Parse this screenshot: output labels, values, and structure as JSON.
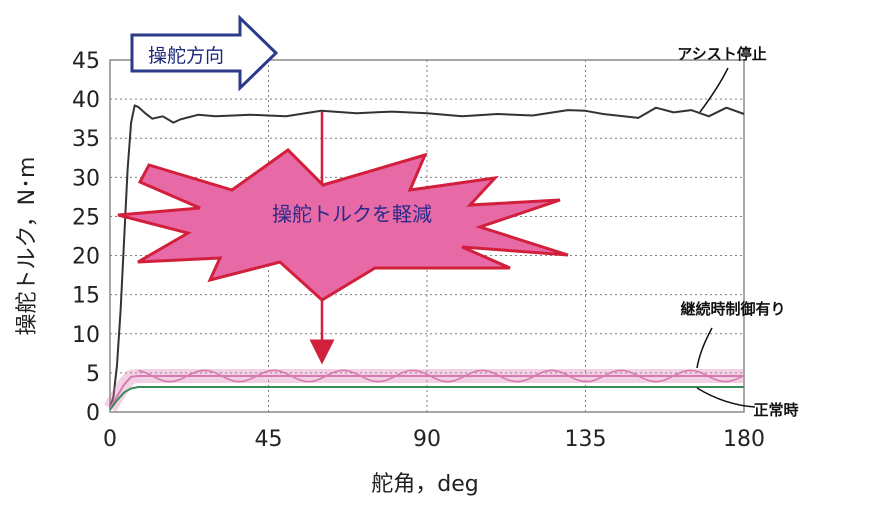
{
  "chart_data": {
    "type": "line",
    "xlabel": "舵角，deg",
    "ylabel": "操舵トルク，N･m",
    "xlim": [
      0,
      180
    ],
    "ylim": [
      0,
      45
    ],
    "x_ticks": [
      0,
      45,
      90,
      135,
      180
    ],
    "y_ticks": [
      0,
      5,
      10,
      15,
      20,
      25,
      30,
      35,
      40,
      45
    ],
    "grid": true,
    "series": [
      {
        "name": "アシスト停止",
        "color": "#333333",
        "x": [
          0,
          1,
          2,
          3,
          4,
          5,
          6,
          7,
          8,
          10,
          12,
          15,
          18,
          20,
          25,
          30,
          40,
          50,
          60,
          70,
          80,
          90,
          100,
          110,
          120,
          130,
          135,
          140,
          150,
          155,
          160,
          165,
          170,
          175,
          180
        ],
        "y": [
          0.5,
          2,
          6,
          13,
          22,
          31,
          37,
          39.2,
          39,
          38.2,
          37.5,
          37.8,
          37,
          37.4,
          38,
          37.8,
          38,
          37.8,
          38.5,
          38.2,
          38.4,
          38.2,
          37.8,
          38.1,
          37.9,
          38.6,
          38.5,
          38.1,
          37.6,
          38.9,
          38.3,
          38.6,
          37.8,
          38.9,
          38.1
        ]
      },
      {
        "name": "継続時制御有り",
        "color": "#d67ab0",
        "x": [
          0,
          2,
          4,
          6,
          8,
          180
        ],
        "y": [
          0.5,
          2,
          3.5,
          4.5,
          4.6,
          4.6
        ],
        "band": 0.9
      },
      {
        "name": "正常時",
        "color": "#3a8a5a",
        "x": [
          0,
          2,
          4,
          6,
          8,
          180
        ],
        "y": [
          0.3,
          1.5,
          2.5,
          3,
          3.2,
          3.2
        ]
      }
    ],
    "annotations": {
      "direction_arrow": "操舵方向",
      "burst": "操舵トルクを軽減",
      "label_stop": "アシスト停止",
      "label_control": "継続時制御有り",
      "label_normal": "正常時"
    }
  }
}
